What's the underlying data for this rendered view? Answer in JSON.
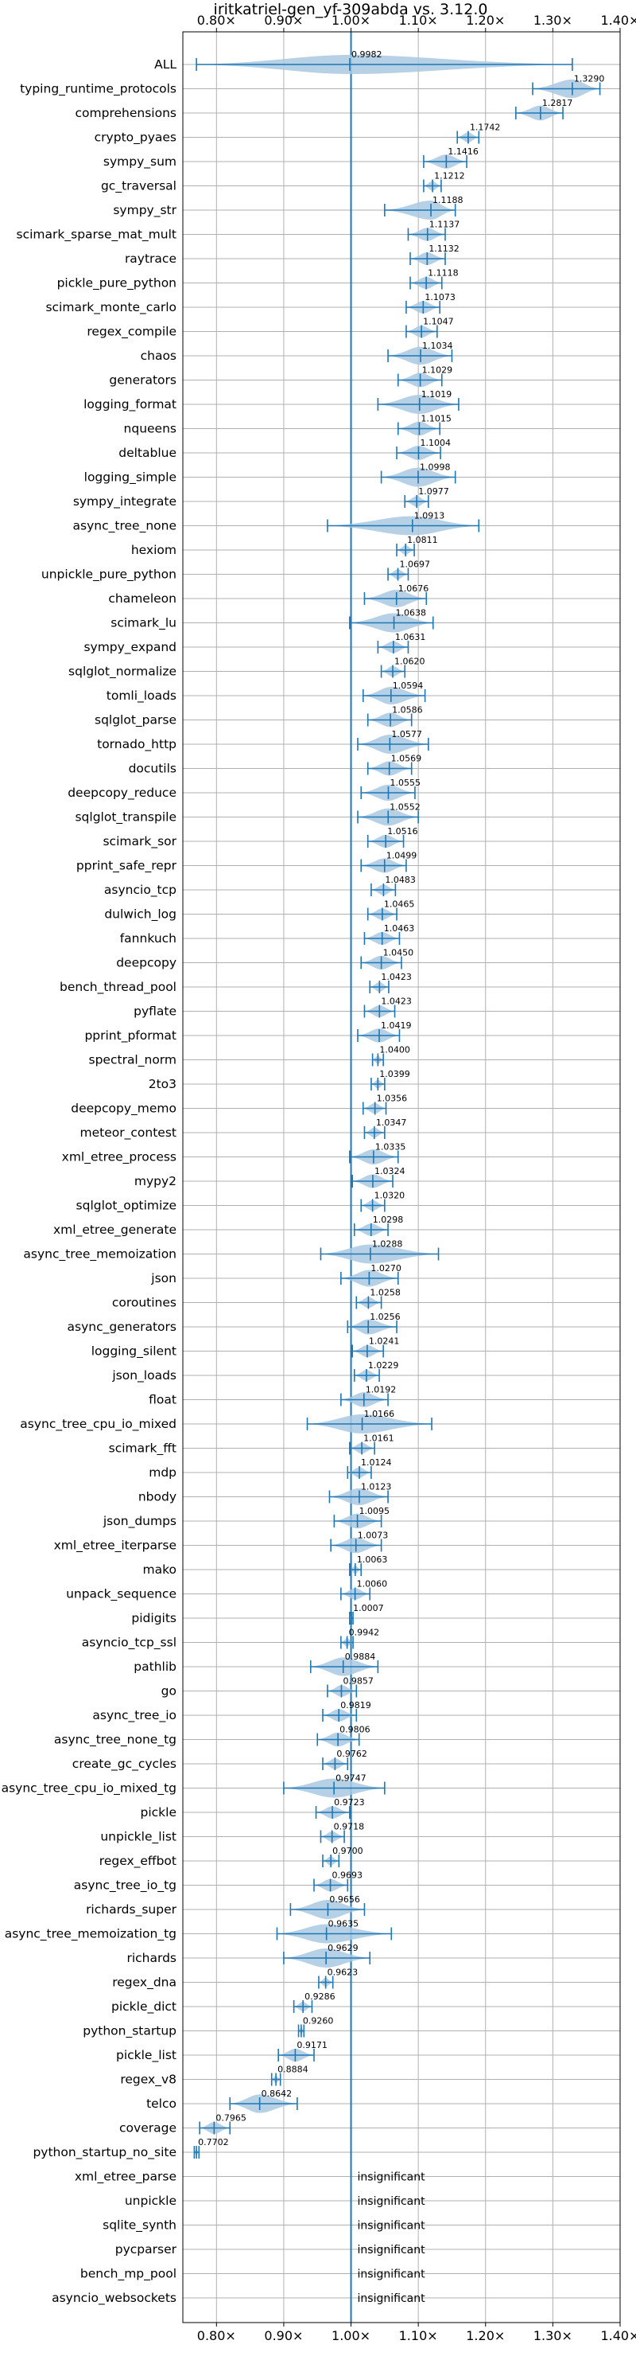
{
  "chart_data": {
    "type": "violin",
    "title": "iritkatriel-gen_yf-309abda vs. 3.12.0",
    "xlim": [
      0.75,
      1.4
    ],
    "xticks": [
      0.8,
      0.9,
      1.0,
      1.1,
      1.2,
      1.3,
      1.4
    ],
    "xtick_labels": [
      "0.80×",
      "0.90×",
      "1.00×",
      "1.10×",
      "1.20×",
      "1.30×",
      "1.40×"
    ],
    "reference_line": 1.0,
    "insignificant_text": "insignificant",
    "benchmarks": [
      {
        "name": "ALL",
        "value": 0.9982,
        "label": "0.9982",
        "min": 0.7702,
        "max": 1.329
      },
      {
        "name": "typing_runtime_protocols",
        "value": 1.329,
        "label": "1.3290",
        "min": 1.27,
        "max": 1.37
      },
      {
        "name": "comprehensions",
        "value": 1.2817,
        "label": "1.2817",
        "min": 1.245,
        "max": 1.315
      },
      {
        "name": "crypto_pyaes",
        "value": 1.1742,
        "label": "1.1742",
        "min": 1.158,
        "max": 1.19
      },
      {
        "name": "sympy_sum",
        "value": 1.1416,
        "label": "1.1416",
        "min": 1.108,
        "max": 1.172
      },
      {
        "name": "gc_traversal",
        "value": 1.1212,
        "label": "1.1212",
        "min": 1.108,
        "max": 1.134
      },
      {
        "name": "sympy_str",
        "value": 1.1188,
        "label": "1.1188",
        "min": 1.05,
        "max": 1.155
      },
      {
        "name": "scimark_sparse_mat_mult",
        "value": 1.1137,
        "label": "1.1137",
        "min": 1.085,
        "max": 1.14
      },
      {
        "name": "raytrace",
        "value": 1.1132,
        "label": "1.1132",
        "min": 1.088,
        "max": 1.14
      },
      {
        "name": "pickle_pure_python",
        "value": 1.1118,
        "label": "1.1118",
        "min": 1.088,
        "max": 1.135
      },
      {
        "name": "scimark_monte_carlo",
        "value": 1.1073,
        "label": "1.1073",
        "min": 1.082,
        "max": 1.132
      },
      {
        "name": "regex_compile",
        "value": 1.1047,
        "label": "1.1047",
        "min": 1.082,
        "max": 1.128
      },
      {
        "name": "chaos",
        "value": 1.1034,
        "label": "1.1034",
        "min": 1.055,
        "max": 1.15
      },
      {
        "name": "generators",
        "value": 1.1029,
        "label": "1.1029",
        "min": 1.07,
        "max": 1.135
      },
      {
        "name": "logging_format",
        "value": 1.1019,
        "label": "1.1019",
        "min": 1.04,
        "max": 1.16
      },
      {
        "name": "nqueens",
        "value": 1.1015,
        "label": "1.1015",
        "min": 1.07,
        "max": 1.132
      },
      {
        "name": "deltablue",
        "value": 1.1004,
        "label": "1.1004",
        "min": 1.068,
        "max": 1.133
      },
      {
        "name": "logging_simple",
        "value": 1.0998,
        "label": "1.0998",
        "min": 1.045,
        "max": 1.155
      },
      {
        "name": "sympy_integrate",
        "value": 1.0977,
        "label": "1.0977",
        "min": 1.08,
        "max": 1.115
      },
      {
        "name": "async_tree_none",
        "value": 1.0913,
        "label": "1.0913",
        "min": 0.965,
        "max": 1.19
      },
      {
        "name": "hexiom",
        "value": 1.0811,
        "label": "1.0811",
        "min": 1.068,
        "max": 1.094
      },
      {
        "name": "unpickle_pure_python",
        "value": 1.0697,
        "label": "1.0697",
        "min": 1.055,
        "max": 1.085
      },
      {
        "name": "chameleon",
        "value": 1.0676,
        "label": "1.0676",
        "min": 1.02,
        "max": 1.112
      },
      {
        "name": "scimark_lu",
        "value": 1.0638,
        "label": "1.0638",
        "min": 0.998,
        "max": 1.122
      },
      {
        "name": "sympy_expand",
        "value": 1.0631,
        "label": "1.0631",
        "min": 1.04,
        "max": 1.085
      },
      {
        "name": "sqlglot_normalize",
        "value": 1.062,
        "label": "1.0620",
        "min": 1.045,
        "max": 1.08
      },
      {
        "name": "tomli_loads",
        "value": 1.0594,
        "label": "1.0594",
        "min": 1.018,
        "max": 1.11
      },
      {
        "name": "sqlglot_parse",
        "value": 1.0586,
        "label": "1.0586",
        "min": 1.025,
        "max": 1.09
      },
      {
        "name": "tornado_http",
        "value": 1.0577,
        "label": "1.0577",
        "min": 1.01,
        "max": 1.115
      },
      {
        "name": "docutils",
        "value": 1.0569,
        "label": "1.0569",
        "min": 1.025,
        "max": 1.09
      },
      {
        "name": "deepcopy_reduce",
        "value": 1.0555,
        "label": "1.0555",
        "min": 1.015,
        "max": 1.095
      },
      {
        "name": "sqlglot_transpile",
        "value": 1.0552,
        "label": "1.0552",
        "min": 1.01,
        "max": 1.1
      },
      {
        "name": "scimark_sor",
        "value": 1.0516,
        "label": "1.0516",
        "min": 1.025,
        "max": 1.078
      },
      {
        "name": "pprint_safe_repr",
        "value": 1.0499,
        "label": "1.0499",
        "min": 1.015,
        "max": 1.082
      },
      {
        "name": "asyncio_tcp",
        "value": 1.0483,
        "label": "1.0483",
        "min": 1.03,
        "max": 1.066
      },
      {
        "name": "dulwich_log",
        "value": 1.0465,
        "label": "1.0465",
        "min": 1.025,
        "max": 1.068
      },
      {
        "name": "fannkuch",
        "value": 1.0463,
        "label": "1.0463",
        "min": 1.02,
        "max": 1.072
      },
      {
        "name": "deepcopy",
        "value": 1.045,
        "label": "1.0450",
        "min": 1.015,
        "max": 1.075
      },
      {
        "name": "bench_thread_pool",
        "value": 1.0423,
        "label": "1.0423",
        "min": 1.028,
        "max": 1.056
      },
      {
        "name": "pyflate",
        "value": 1.0423,
        "label": "1.0423",
        "min": 1.02,
        "max": 1.065
      },
      {
        "name": "pprint_pformat",
        "value": 1.0419,
        "label": "1.0419",
        "min": 1.01,
        "max": 1.072
      },
      {
        "name": "spectral_norm",
        "value": 1.04,
        "label": "1.0400",
        "min": 1.032,
        "max": 1.048
      },
      {
        "name": "2to3",
        "value": 1.0399,
        "label": "1.0399",
        "min": 1.03,
        "max": 1.05
      },
      {
        "name": "deepcopy_memo",
        "value": 1.0356,
        "label": "1.0356",
        "min": 1.018,
        "max": 1.052
      },
      {
        "name": "meteor_contest",
        "value": 1.0347,
        "label": "1.0347",
        "min": 1.02,
        "max": 1.05
      },
      {
        "name": "xml_etree_process",
        "value": 1.0335,
        "label": "1.0335",
        "min": 0.998,
        "max": 1.07
      },
      {
        "name": "mypy2",
        "value": 1.0324,
        "label": "1.0324",
        "min": 1.002,
        "max": 1.062
      },
      {
        "name": "sqlglot_optimize",
        "value": 1.032,
        "label": "1.0320",
        "min": 1.015,
        "max": 1.05
      },
      {
        "name": "xml_etree_generate",
        "value": 1.0298,
        "label": "1.0298",
        "min": 1.005,
        "max": 1.055
      },
      {
        "name": "async_tree_memoization",
        "value": 1.0288,
        "label": "1.0288",
        "min": 0.955,
        "max": 1.13
      },
      {
        "name": "json",
        "value": 1.027,
        "label": "1.0270",
        "min": 0.985,
        "max": 1.07
      },
      {
        "name": "coroutines",
        "value": 1.0258,
        "label": "1.0258",
        "min": 1.008,
        "max": 1.045
      },
      {
        "name": "async_generators",
        "value": 1.0256,
        "label": "1.0256",
        "min": 0.995,
        "max": 1.068
      },
      {
        "name": "logging_silent",
        "value": 1.0241,
        "label": "1.0241",
        "min": 1.002,
        "max": 1.048
      },
      {
        "name": "json_loads",
        "value": 1.0229,
        "label": "1.0229",
        "min": 1.005,
        "max": 1.042
      },
      {
        "name": "float",
        "value": 1.0192,
        "label": "1.0192",
        "min": 0.985,
        "max": 1.055
      },
      {
        "name": "async_tree_cpu_io_mixed",
        "value": 1.0166,
        "label": "1.0166",
        "min": 0.935,
        "max": 1.12
      },
      {
        "name": "scimark_fft",
        "value": 1.0161,
        "label": "1.0161",
        "min": 0.998,
        "max": 1.035
      },
      {
        "name": "mdp",
        "value": 1.0124,
        "label": "1.0124",
        "min": 0.995,
        "max": 1.03
      },
      {
        "name": "nbody",
        "value": 1.0123,
        "label": "1.0123",
        "min": 0.968,
        "max": 1.055
      },
      {
        "name": "json_dumps",
        "value": 1.0095,
        "label": "1.0095",
        "min": 0.975,
        "max": 1.045
      },
      {
        "name": "xml_etree_iterparse",
        "value": 1.0073,
        "label": "1.0073",
        "min": 0.97,
        "max": 1.045
      },
      {
        "name": "mako",
        "value": 1.0063,
        "label": "1.0063",
        "min": 0.998,
        "max": 1.015
      },
      {
        "name": "unpack_sequence",
        "value": 1.006,
        "label": "1.0060",
        "min": 0.985,
        "max": 1.028
      },
      {
        "name": "pidigits",
        "value": 1.0007,
        "label": "1.0007",
        "min": 0.998,
        "max": 1.003
      },
      {
        "name": "asyncio_tcp_ssl",
        "value": 0.9942,
        "label": "0.9942",
        "min": 0.985,
        "max": 1.003
      },
      {
        "name": "pathlib",
        "value": 0.9884,
        "label": "0.9884",
        "min": 0.94,
        "max": 1.04
      },
      {
        "name": "go",
        "value": 0.9857,
        "label": "0.9857",
        "min": 0.965,
        "max": 1.008
      },
      {
        "name": "async_tree_io",
        "value": 0.9819,
        "label": "0.9819",
        "min": 0.958,
        "max": 1.008
      },
      {
        "name": "async_tree_none_tg",
        "value": 0.9806,
        "label": "0.9806",
        "min": 0.95,
        "max": 1.012
      },
      {
        "name": "create_gc_cycles",
        "value": 0.9762,
        "label": "0.9762",
        "min": 0.958,
        "max": 0.995
      },
      {
        "name": "async_tree_cpu_io_mixed_tg",
        "value": 0.9747,
        "label": "0.9747",
        "min": 0.9,
        "max": 1.05
      },
      {
        "name": "pickle",
        "value": 0.9723,
        "label": "0.9723",
        "min": 0.948,
        "max": 0.998
      },
      {
        "name": "unpickle_list",
        "value": 0.9718,
        "label": "0.9718",
        "min": 0.955,
        "max": 0.99
      },
      {
        "name": "regex_effbot",
        "value": 0.97,
        "label": "0.9700",
        "min": 0.958,
        "max": 0.982
      },
      {
        "name": "async_tree_io_tg",
        "value": 0.9693,
        "label": "0.9693",
        "min": 0.945,
        "max": 0.995
      },
      {
        "name": "richards_super",
        "value": 0.9656,
        "label": "0.9656",
        "min": 0.91,
        "max": 1.02
      },
      {
        "name": "async_tree_memoization_tg",
        "value": 0.9635,
        "label": "0.9635",
        "min": 0.89,
        "max": 1.06
      },
      {
        "name": "richards",
        "value": 0.9629,
        "label": "0.9629",
        "min": 0.9,
        "max": 1.028
      },
      {
        "name": "regex_dna",
        "value": 0.9623,
        "label": "0.9623",
        "min": 0.952,
        "max": 0.973
      },
      {
        "name": "pickle_dict",
        "value": 0.9286,
        "label": "0.9286",
        "min": 0.915,
        "max": 0.942
      },
      {
        "name": "python_startup",
        "value": 0.926,
        "label": "0.9260",
        "min": 0.922,
        "max": 0.93
      },
      {
        "name": "pickle_list",
        "value": 0.9171,
        "label": "0.9171",
        "min": 0.892,
        "max": 0.945
      },
      {
        "name": "regex_v8",
        "value": 0.8884,
        "label": "0.8884",
        "min": 0.882,
        "max": 0.895
      },
      {
        "name": "telco",
        "value": 0.8642,
        "label": "0.8642",
        "min": 0.82,
        "max": 0.92
      },
      {
        "name": "coverage",
        "value": 0.7965,
        "label": "0.7965",
        "min": 0.775,
        "max": 0.82
      },
      {
        "name": "python_startup_no_site",
        "value": 0.7702,
        "label": "0.7702",
        "min": 0.767,
        "max": 0.774
      },
      {
        "name": "xml_etree_parse",
        "value": null,
        "label": "",
        "insignificant": true
      },
      {
        "name": "unpickle",
        "value": null,
        "label": "",
        "insignificant": true
      },
      {
        "name": "sqlite_synth",
        "value": null,
        "label": "",
        "insignificant": true
      },
      {
        "name": "pycparser",
        "value": null,
        "label": "",
        "insignificant": true
      },
      {
        "name": "bench_mp_pool",
        "value": null,
        "label": "",
        "insignificant": true
      },
      {
        "name": "asyncio_websockets",
        "value": null,
        "label": "",
        "insignificant": true
      }
    ]
  },
  "colors": {
    "violin": "#a9c8e2",
    "marker": "#1f77b4",
    "grid": "#b0b0b0",
    "reference": "#1f77b4"
  }
}
